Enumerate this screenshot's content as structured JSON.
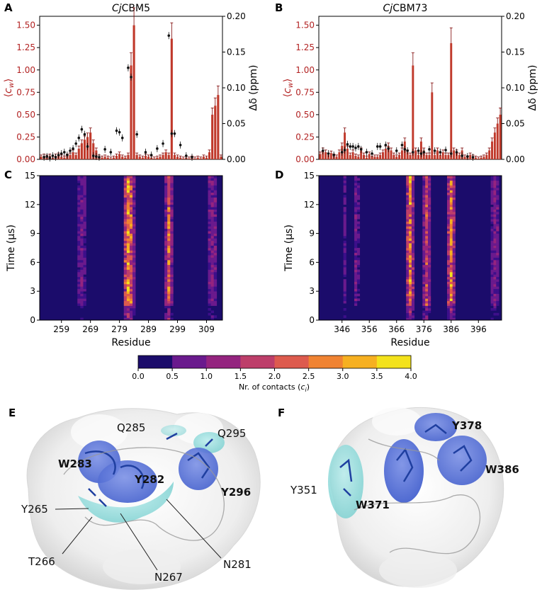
{
  "panel_labels": {
    "a": "A",
    "b": "B",
    "c": "C",
    "d": "D",
    "e": "E",
    "f": "F"
  },
  "colors": {
    "bar": "#c0392b",
    "errbar": "#7b0000",
    "nmr": "#111111",
    "heat_low": "#1b0c6b",
    "heat_high": "#f3e21c"
  },
  "chart_data": [
    {
      "id": "A",
      "type": "bar",
      "title_prefix": "Cj",
      "title_suffix": "CBM5",
      "ylabel_left": "⟨c_w⟩",
      "ylabel_right": "Δδ (ppm)",
      "ylim_left": [
        0,
        1.6
      ],
      "ylim_right": [
        0,
        0.2
      ],
      "yticks_left": [
        "0.00",
        "0.25",
        "0.50",
        "0.75",
        "1.00",
        "1.25",
        "1.50"
      ],
      "yticks_right": [
        "0.00",
        "0.05",
        "0.10",
        "0.15",
        "0.20"
      ],
      "x_start": 252,
      "x_end": 314,
      "bars": [
        0.03,
        0.04,
        0.03,
        0.04,
        0.02,
        0.04,
        0.05,
        0.03,
        0.02,
        0.04,
        0.05,
        0.08,
        0.05,
        0.12,
        0.18,
        0.22,
        0.25,
        0.3,
        0.18,
        0.1,
        0.03,
        0.02,
        0.03,
        0.02,
        0.01,
        0.02,
        0.04,
        0.06,
        0.03,
        0.02,
        0.05,
        1.05,
        1.5,
        0.05,
        0.03,
        0.02,
        0.04,
        0.03,
        0.02,
        0.01,
        0.02,
        0.03,
        0.05,
        0.08,
        0.05,
        1.35,
        0.05,
        0.03,
        0.02,
        0.01,
        0.02,
        0.01,
        0.02,
        0.01,
        0.02,
        0.01,
        0.03,
        0.02,
        0.08,
        0.5,
        0.6,
        0.72,
        0.03
      ],
      "nmr": [
        [
          253,
          0.003
        ],
        [
          254,
          0.004
        ],
        [
          255,
          0.002
        ],
        [
          256,
          0.005
        ],
        [
          257,
          0.003
        ],
        [
          258,
          0.006
        ],
        [
          259,
          0.008
        ],
        [
          260,
          0.01
        ],
        [
          261,
          0.006
        ],
        [
          262,
          0.012
        ],
        [
          263,
          0.015
        ],
        [
          264,
          0.022
        ],
        [
          265,
          0.03
        ],
        [
          266,
          0.042
        ],
        [
          267,
          0.035
        ],
        [
          268,
          0.018
        ],
        [
          270,
          0.005
        ],
        [
          271,
          0.004
        ],
        [
          272,
          0.003
        ],
        [
          274,
          0.014
        ],
        [
          276,
          0.01
        ],
        [
          278,
          0.04
        ],
        [
          279,
          0.038
        ],
        [
          280,
          0.03
        ],
        [
          282,
          0.128
        ],
        [
          283,
          0.115
        ],
        [
          285,
          0.035
        ],
        [
          288,
          0.01
        ],
        [
          290,
          0.006
        ],
        [
          292,
          0.015
        ],
        [
          294,
          0.022
        ],
        [
          296,
          0.173
        ],
        [
          297,
          0.036
        ],
        [
          298,
          0.036
        ],
        [
          300,
          0.02
        ],
        [
          302,
          0.005
        ],
        [
          304,
          0.003
        ]
      ]
    },
    {
      "id": "B",
      "type": "bar",
      "title_prefix": "Cj",
      "title_suffix": "CBM73",
      "ylabel_left": "⟨c_w⟩",
      "ylabel_right": "Δδ (ppm)",
      "ylim_left": [
        0,
        1.6
      ],
      "ylim_right": [
        0,
        0.2
      ],
      "yticks_left": [
        "0.00",
        "0.25",
        "0.50",
        "0.75",
        "1.00",
        "1.25",
        "1.50"
      ],
      "yticks_right": [
        "0.00",
        "0.05",
        "0.10",
        "0.15",
        "0.20"
      ],
      "x_start": 338,
      "x_end": 404,
      "bars": [
        0.06,
        0.1,
        0.08,
        0.05,
        0.07,
        0.04,
        0.03,
        0.08,
        0.15,
        0.3,
        0.12,
        0.05,
        0.08,
        0.04,
        0.03,
        0.1,
        0.05,
        0.02,
        0.06,
        0.04,
        0.03,
        0.03,
        0.05,
        0.08,
        0.12,
        0.15,
        0.1,
        0.05,
        0.03,
        0.05,
        0.1,
        0.2,
        0.08,
        0.05,
        1.05,
        0.1,
        0.05,
        0.2,
        0.1,
        0.05,
        0.05,
        0.75,
        0.05,
        0.1,
        0.05,
        0.08,
        0.05,
        0.05,
        1.3,
        0.1,
        0.08,
        0.05,
        0.1,
        0.03,
        0.02,
        0.05,
        0.03,
        0.02,
        0.01,
        0.02,
        0.03,
        0.05,
        0.1,
        0.2,
        0.3,
        0.4,
        0.5
      ],
      "nmr": [
        [
          339,
          0.012
        ],
        [
          341,
          0.008
        ],
        [
          343,
          0.006
        ],
        [
          346,
          0.01
        ],
        [
          347,
          0.013
        ],
        [
          348,
          0.021
        ],
        [
          349,
          0.018
        ],
        [
          350,
          0.018
        ],
        [
          351,
          0.016
        ],
        [
          352,
          0.018
        ],
        [
          353,
          0.014
        ],
        [
          355,
          0.01
        ],
        [
          357,
          0.008
        ],
        [
          359,
          0.018
        ],
        [
          360,
          0.018
        ],
        [
          362,
          0.02
        ],
        [
          363,
          0.015
        ],
        [
          366,
          0.012
        ],
        [
          368,
          0.02
        ],
        [
          369,
          0.014
        ],
        [
          370,
          0.012
        ],
        [
          372,
          0.01
        ],
        [
          374,
          0.012
        ],
        [
          375,
          0.008
        ],
        [
          376,
          0.01
        ],
        [
          378,
          0.014
        ],
        [
          380,
          0.012
        ],
        [
          382,
          0.01
        ],
        [
          384,
          0.013
        ],
        [
          386,
          0.008
        ],
        [
          388,
          0.01
        ],
        [
          390,
          0.005
        ],
        [
          392,
          0.004
        ],
        [
          394,
          0.003
        ]
      ]
    },
    {
      "id": "C",
      "type": "heatmap",
      "xlabel": "Residue",
      "ylabel": "Time (μs)",
      "xlim": [
        252,
        314
      ],
      "xticks": [
        "259",
        "269",
        "279",
        "289",
        "299",
        "309"
      ],
      "xtick_values": [
        259,
        269,
        279,
        289,
        299,
        309
      ],
      "yticks": [
        "0",
        "3",
        "6",
        "9",
        "12",
        "15"
      ],
      "ylim": [
        0,
        15
      ],
      "hot_residues": [
        {
          "res": 265,
          "v": 1.0
        },
        {
          "res": 266,
          "v": 1.2
        },
        {
          "res": 267,
          "v": 1.0
        },
        {
          "res": 281,
          "v": 2.5
        },
        {
          "res": 282,
          "v": 3.7
        },
        {
          "res": 283,
          "v": 3.0
        },
        {
          "res": 284,
          "v": 1.5
        },
        {
          "res": 295,
          "v": 1.5
        },
        {
          "res": 296,
          "v": 3.2
        },
        {
          "res": 297,
          "v": 1.5
        },
        {
          "res": 310,
          "v": 1.2
        },
        {
          "res": 311,
          "v": 1.4
        },
        {
          "res": 312,
          "v": 1.2
        }
      ]
    },
    {
      "id": "D",
      "type": "heatmap",
      "xlabel": "Residue",
      "ylabel": "Time (μs)",
      "xlim": [
        338,
        404
      ],
      "xticks": [
        "346",
        "356",
        "366",
        "376",
        "386",
        "396"
      ],
      "xtick_values": [
        346,
        356,
        366,
        376,
        386,
        396
      ],
      "yticks": [
        "0",
        "3",
        "6",
        "9",
        "12",
        "15"
      ],
      "ylim": [
        0,
        15
      ],
      "hot_residues": [
        {
          "res": 347,
          "v": 1.0
        },
        {
          "res": 351,
          "v": 1.2
        },
        {
          "res": 352,
          "v": 0.8
        },
        {
          "res": 370,
          "v": 2.2
        },
        {
          "res": 371,
          "v": 3.4
        },
        {
          "res": 372,
          "v": 1.8
        },
        {
          "res": 376,
          "v": 1.5
        },
        {
          "res": 377,
          "v": 2.6
        },
        {
          "res": 378,
          "v": 1.5
        },
        {
          "res": 385,
          "v": 2.0
        },
        {
          "res": 386,
          "v": 3.4
        },
        {
          "res": 387,
          "v": 1.8
        },
        {
          "res": 401,
          "v": 1.0
        },
        {
          "res": 402,
          "v": 1.4
        },
        {
          "res": 403,
          "v": 1.2
        }
      ]
    },
    {
      "id": "colorbar",
      "type": "colorbar",
      "label": "Nr. of contacts (c_i)",
      "ticks": [
        "0.0",
        "0.5",
        "1.0",
        "1.5",
        "2.0",
        "2.5",
        "3.0",
        "3.5",
        "4.0"
      ],
      "segment_colors": [
        "#1b0c6b",
        "#3d0f8a",
        "#6a1a8d",
        "#94247f",
        "#bd3e6a",
        "#dd5b4e",
        "#f08332",
        "#f6b021",
        "#f3e21c"
      ]
    }
  ],
  "structures": {
    "E": {
      "bold": [
        "W283",
        "Y282",
        "Y296"
      ],
      "plain": [
        "Q285",
        "Q295",
        "Y265",
        "T266",
        "N267",
        "N281"
      ]
    },
    "F": {
      "bold": [
        "Y378",
        "W386",
        "W371"
      ],
      "plain": [
        "Y351"
      ]
    }
  }
}
